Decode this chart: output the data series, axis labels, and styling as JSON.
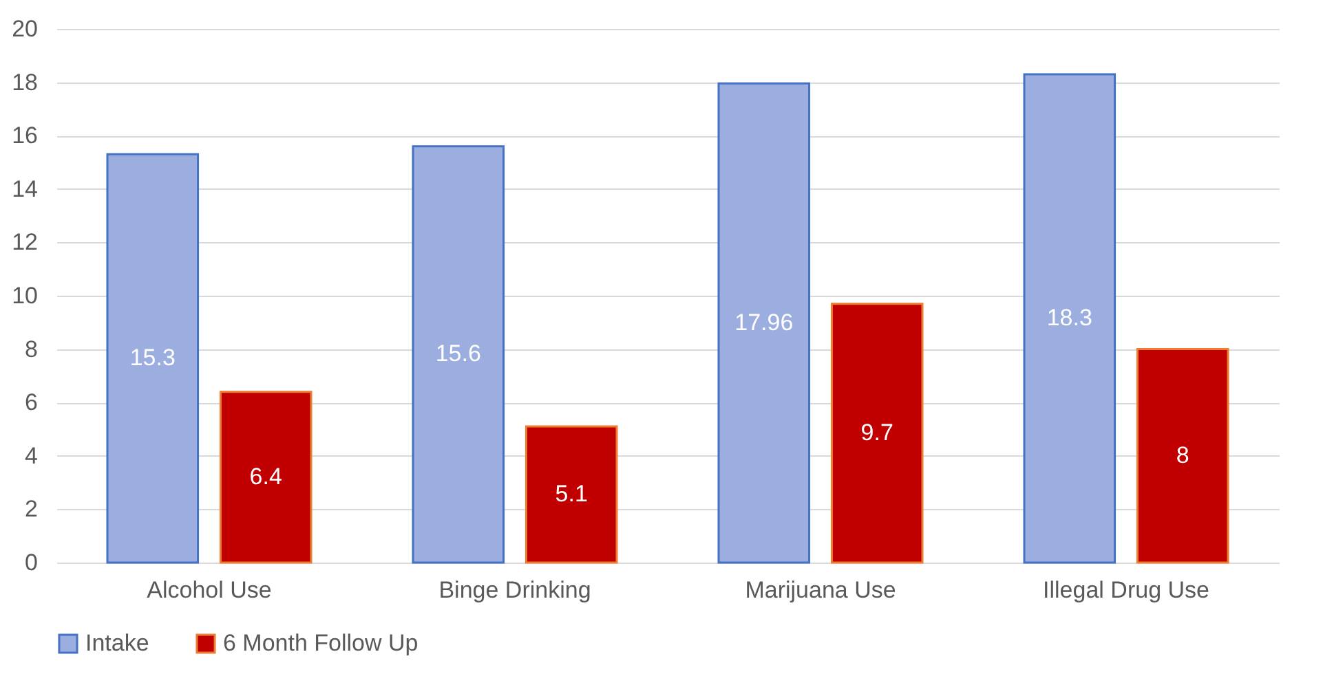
{
  "chart_data": {
    "type": "bar",
    "categories": [
      "Alcohol Use",
      "Binge Drinking",
      "Marijuana Use",
      "Illegal Drug Use"
    ],
    "series": [
      {
        "name": "Intake",
        "color": "#9caee0",
        "values": [
          15.3,
          15.6,
          17.96,
          18.3
        ]
      },
      {
        "name": "6 Month Follow Up",
        "color": "#c00000",
        "values": [
          6.4,
          5.1,
          9.7,
          8
        ]
      }
    ],
    "ylim": [
      0,
      20
    ],
    "yticks": [
      0,
      2,
      4,
      6,
      8,
      10,
      12,
      14,
      16,
      18,
      20
    ],
    "grid": "y",
    "legend": "bottom",
    "data_labels": true
  }
}
